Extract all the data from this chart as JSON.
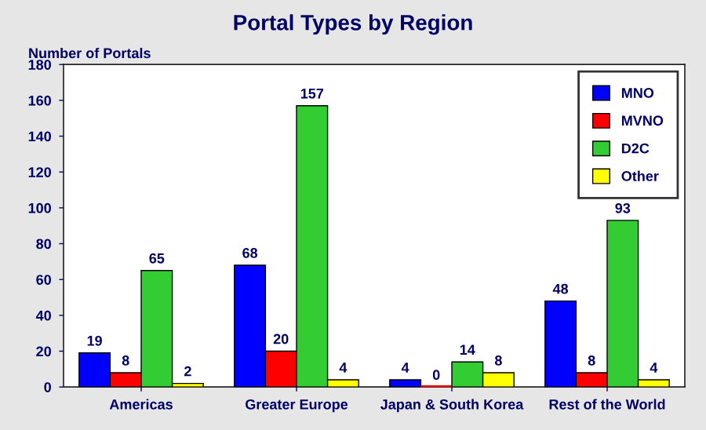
{
  "chart_data": {
    "type": "bar",
    "title": "Portal Types by Region",
    "ylabel": "Number of Portals",
    "categories": [
      "Americas",
      "Greater Europe",
      "Japan & South Korea",
      "Rest of the World"
    ],
    "series": [
      {
        "name": "MNO",
        "color": "#0000ff",
        "values": [
          19,
          68,
          4,
          48
        ]
      },
      {
        "name": "MVNO",
        "color": "#ff0000",
        "values": [
          8,
          20,
          0,
          8
        ]
      },
      {
        "name": "D2C",
        "color": "#33cc33",
        "values": [
          65,
          157,
          14,
          93
        ]
      },
      {
        "name": "Other",
        "color": "#ffff00",
        "values": [
          2,
          4,
          8,
          4
        ]
      }
    ],
    "ylim": [
      0,
      180
    ],
    "yticks": [
      0,
      20,
      40,
      60,
      80,
      100,
      120,
      140,
      160,
      180
    ],
    "data_labels": true,
    "legend": "top right",
    "grid": false
  }
}
